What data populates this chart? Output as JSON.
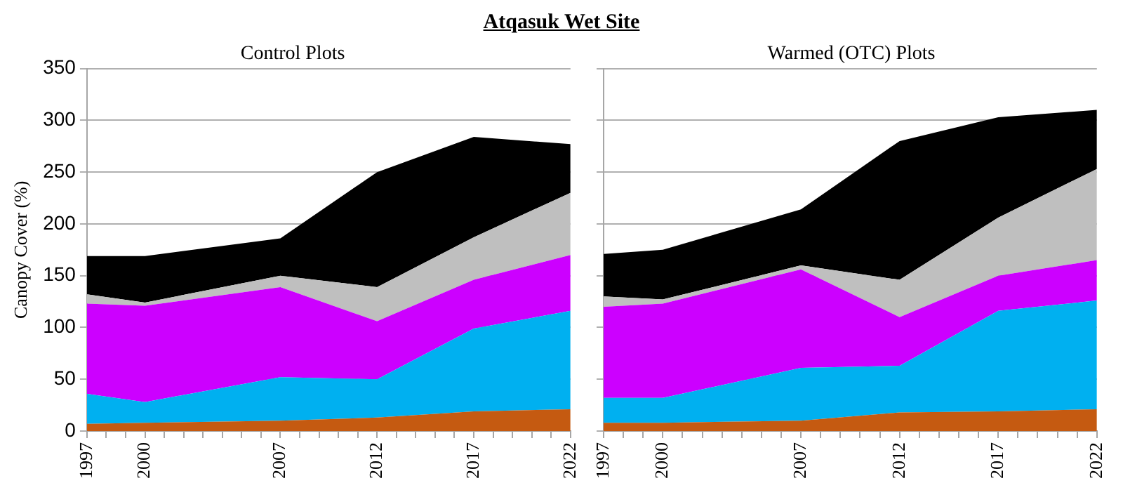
{
  "chart_data": [
    {
      "type": "area",
      "title": "Control Plots",
      "ylabel": "Canopy Cover (%)",
      "annotations": [
        "Atqasuk Wet Site"
      ],
      "stacked": true,
      "grid": "y",
      "legend": false,
      "marker": "none",
      "x": [
        1997,
        2000,
        2007,
        2012,
        2017,
        2022
      ],
      "xlim": [
        1997,
        2022
      ],
      "ylim": [
        0,
        350
      ],
      "yticks": [
        0,
        50,
        100,
        150,
        200,
        250,
        300,
        350
      ],
      "xticks": [
        1997,
        {
          "value": 1998,
          "label": null
        },
        {
          "value": 1999,
          "label": null
        },
        2000,
        {
          "value": 2001,
          "label": null
        },
        {
          "value": 2002,
          "label": null
        },
        {
          "value": 2003,
          "label": null
        },
        {
          "value": 2004,
          "label": null
        },
        {
          "value": 2005,
          "label": null
        },
        {
          "value": 2006,
          "label": null
        },
        2007,
        {
          "value": 2008,
          "label": null
        },
        {
          "value": 2009,
          "label": null
        },
        {
          "value": 2010,
          "label": null
        },
        {
          "value": 2011,
          "label": null
        },
        2012,
        {
          "value": 2013,
          "label": null
        },
        {
          "value": 2014,
          "label": null
        },
        {
          "value": 2015,
          "label": null
        },
        {
          "value": 2016,
          "label": null
        },
        2017,
        {
          "value": 2018,
          "label": null
        },
        {
          "value": 2019,
          "label": null
        },
        {
          "value": 2020,
          "label": null
        },
        {
          "value": 2021,
          "label": null
        },
        2022
      ],
      "series": [
        {
          "color": "#c55a11",
          "values": [
            7,
            8,
            10,
            13,
            19,
            21
          ]
        },
        {
          "color": "#00b0f0",
          "values": [
            29,
            20,
            42,
            37,
            80,
            95
          ]
        },
        {
          "color": "#cc00ff",
          "values": [
            87,
            93,
            87,
            56,
            47,
            54
          ]
        },
        {
          "color": "#bfbfbf",
          "values": [
            9,
            3,
            11,
            33,
            41,
            60
          ]
        },
        {
          "color": "#000000",
          "values": [
            37,
            45,
            36,
            111,
            97,
            47
          ]
        }
      ]
    },
    {
      "type": "area",
      "title": "Warmed (OTC) Plots",
      "stacked": true,
      "grid": "y",
      "legend": false,
      "marker": "none",
      "tick_labels": "x",
      "x": [
        1997,
        2000,
        2007,
        2012,
        2017,
        2022
      ],
      "xlim": [
        1997,
        2022
      ],
      "ylim": [
        0,
        350
      ],
      "yticks": [
        0,
        50,
        100,
        150,
        200,
        250,
        300,
        350
      ],
      "xticks": [
        1997,
        {
          "value": 1998,
          "label": null
        },
        {
          "value": 1999,
          "label": null
        },
        2000,
        {
          "value": 2001,
          "label": null
        },
        {
          "value": 2002,
          "label": null
        },
        {
          "value": 2003,
          "label": null
        },
        {
          "value": 2004,
          "label": null
        },
        {
          "value": 2005,
          "label": null
        },
        {
          "value": 2006,
          "label": null
        },
        2007,
        {
          "value": 2008,
          "label": null
        },
        {
          "value": 2009,
          "label": null
        },
        {
          "value": 2010,
          "label": null
        },
        {
          "value": 2011,
          "label": null
        },
        2012,
        {
          "value": 2013,
          "label": null
        },
        {
          "value": 2014,
          "label": null
        },
        {
          "value": 2015,
          "label": null
        },
        {
          "value": 2016,
          "label": null
        },
        2017,
        {
          "value": 2018,
          "label": null
        },
        {
          "value": 2019,
          "label": null
        },
        {
          "value": 2020,
          "label": null
        },
        {
          "value": 2021,
          "label": null
        },
        2022
      ],
      "series": [
        {
          "color": "#c55a11",
          "values": [
            8,
            8,
            10,
            18,
            19,
            21
          ]
        },
        {
          "color": "#00b0f0",
          "values": [
            24,
            24,
            51,
            45,
            97,
            105
          ]
        },
        {
          "color": "#cc00ff",
          "values": [
            88,
            91,
            95,
            47,
            34,
            39
          ]
        },
        {
          "color": "#bfbfbf",
          "values": [
            10,
            4,
            4,
            36,
            56,
            88
          ]
        },
        {
          "color": "#000000",
          "values": [
            41,
            48,
            54,
            134,
            97,
            57
          ]
        }
      ]
    }
  ]
}
